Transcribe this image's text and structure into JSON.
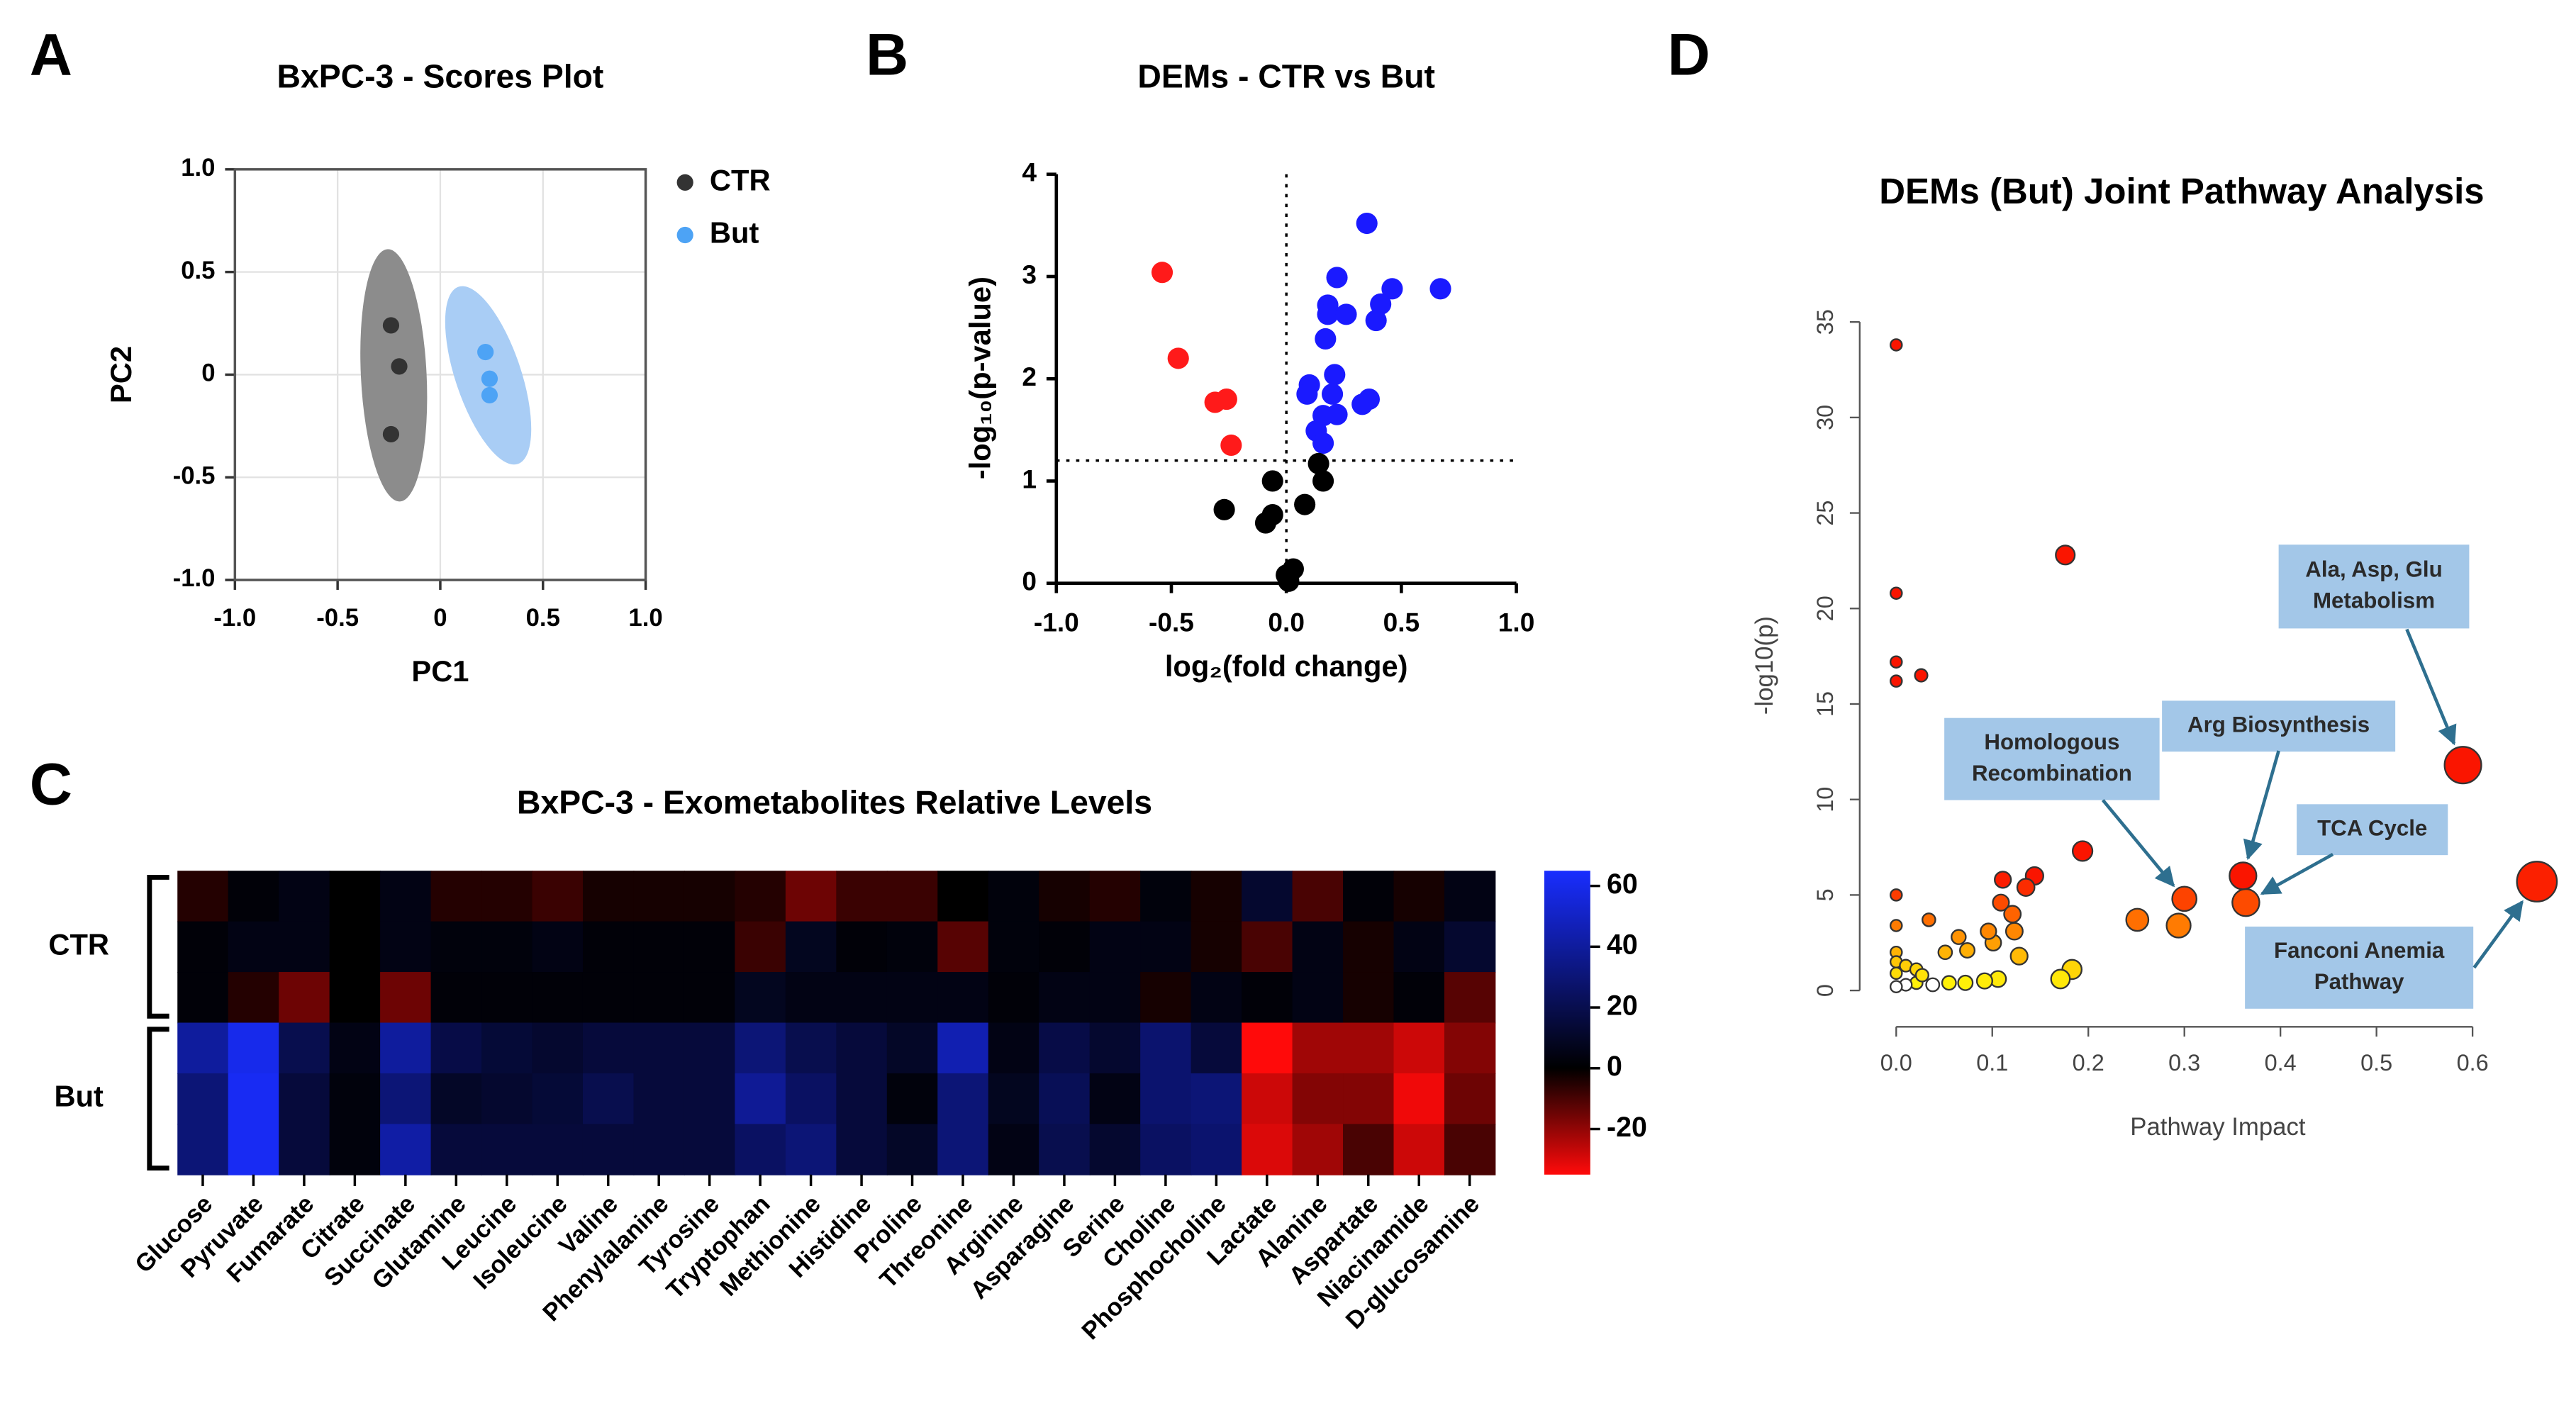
{
  "chart_data": [
    {
      "type": "scatter",
      "panel_label": "A",
      "title": "BxPC-3 - Scores Plot",
      "x_label": "PC1",
      "y_label": "PC2",
      "xlim": [
        -1,
        1
      ],
      "ylim": [
        -1,
        1
      ],
      "xticks": [
        {
          "value": -1,
          "label": "-1.0"
        },
        -0.5,
        0,
        0.5,
        {
          "value": 1,
          "label": "1.0"
        }
      ],
      "yticks": [
        {
          "value": -1,
          "label": "-1.0"
        },
        -0.5,
        0,
        0.5,
        {
          "value": 1,
          "label": "1.0"
        }
      ],
      "grid": true,
      "ellipses": true,
      "legend": "right",
      "series": [
        {
          "name": "CTR",
          "color": "#333333",
          "ellipse_color": "#8c8c8c",
          "x": [
            -0.24,
            -0.2,
            -0.24
          ],
          "values": [
            0.24,
            0.04,
            -0.29
          ]
        },
        {
          "name": "But",
          "color": "#4da3f5",
          "ellipse_color": "#a9cdf5",
          "x": [
            0.22,
            0.24,
            0.24
          ],
          "values": [
            0.11,
            -0.02,
            -0.1
          ]
        }
      ]
    },
    {
      "type": "volcano",
      "panel_label": "B",
      "title": "DEMs - CTR vs But",
      "x_label": "log₂(fold change)",
      "y_label": "-log₁₀(p-value)",
      "xlim": [
        -1,
        1
      ],
      "ylim": [
        0,
        4
      ],
      "xticks": [
        {
          "value": -1,
          "label": "-1.0"
        },
        -0.5,
        {
          "value": 0,
          "label": "0.0"
        },
        0.5,
        {
          "value": 1,
          "label": "1.0"
        }
      ],
      "yticks": [
        0,
        1,
        2,
        3,
        4
      ],
      "reference_lines": {
        "x": 0,
        "y": 1.2
      },
      "series": [
        {
          "color": "#ff1a1a",
          "x": [
            -0.54,
            -0.47,
            -0.31,
            -0.26,
            -0.24
          ],
          "values": [
            3.04,
            2.2,
            1.77,
            1.8,
            1.35
          ]
        },
        {
          "color": "#1a1aff",
          "x": [
            0.35,
            0.67,
            0.46,
            0.41,
            0.39,
            0.22,
            0.18,
            0.18,
            0.26,
            0.17,
            0.21,
            0.1,
            0.09,
            0.2,
            0.36,
            0.33,
            0.22,
            0.16,
            0.13,
            0.16
          ],
          "values": [
            3.52,
            2.88,
            2.88,
            2.73,
            2.57,
            2.99,
            2.72,
            2.63,
            2.63,
            2.39,
            2.04,
            1.94,
            1.85,
            1.85,
            1.8,
            1.75,
            1.65,
            1.64,
            1.49,
            1.37
          ]
        },
        {
          "color": "#000000",
          "x": [
            0.14,
            0.16,
            -0.06,
            0.08,
            -0.06,
            -0.09,
            -0.27,
            0.03,
            0,
            0.01
          ],
          "values": [
            1.17,
            1.0,
            1.0,
            0.77,
            0.67,
            0.59,
            0.72,
            0.14,
            0.08,
            0.02
          ]
        }
      ]
    },
    {
      "type": "heatmap",
      "panel_label": "C",
      "title": "BxPC-3 - Exometabolites Relative Levels",
      "categories": [
        "Glucose",
        "Pyruvate",
        "Fumarate",
        "Citrate",
        "Succinate",
        "Glutamine",
        "Leucine",
        "Isoleucine",
        "Valine",
        "Phenylalanine",
        "Tyrosine",
        "Tryptophan",
        "Methionine",
        "Histidine",
        "Proline",
        "Threonine",
        "Arginine",
        "Asparagine",
        "Serine",
        "Choline",
        "Phosphocholine",
        "Lactate",
        "Alanine",
        "Aspartate",
        "Niacinamide",
        "D-glucosamine"
      ],
      "groups": [
        {
          "name": "CTR",
          "rows": [
            [
              -5,
              2,
              5,
              0,
              5,
              -5,
              -5,
              -8,
              -3,
              -3,
              -3,
              -5,
              -15,
              -8,
              -8,
              0,
              3,
              -3,
              -5,
              3,
              -3,
              12,
              -10,
              2,
              -3,
              5
            ],
            [
              2,
              5,
              5,
              0,
              5,
              3,
              3,
              5,
              2,
              2,
              2,
              -8,
              8,
              2,
              3,
              -12,
              3,
              2,
              5,
              5,
              -3,
              -10,
              5,
              -3,
              5,
              12
            ],
            [
              2,
              -5,
              -15,
              0,
              -15,
              2,
              2,
              2,
              2,
              2,
              2,
              8,
              5,
              5,
              5,
              5,
              2,
              5,
              5,
              -3,
              5,
              2,
              5,
              -3,
              2,
              -12
            ]
          ]
        },
        {
          "name": "But",
          "rows": [
            [
              40,
              60,
              20,
              5,
              40,
              18,
              14,
              12,
              15,
              15,
              15,
              30,
              20,
              15,
              10,
              45,
              5,
              18,
              12,
              28,
              15,
              -35,
              -22,
              -22,
              -28,
              -18
            ],
            [
              30,
              62,
              15,
              3,
              30,
              10,
              12,
              14,
              20,
              15,
              15,
              38,
              25,
              15,
              3,
              30,
              8,
              22,
              5,
              28,
              30,
              -28,
              -18,
              -18,
              -33,
              -15
            ],
            [
              30,
              62,
              15,
              3,
              42,
              15,
              15,
              15,
              15,
              15,
              15,
              25,
              30,
              15,
              10,
              30,
              5,
              20,
              12,
              25,
              28,
              -30,
              -22,
              -10,
              -28,
              -10
            ]
          ]
        }
      ],
      "zlim": [
        -35,
        65
      ],
      "colorbar_ticks": [
        60,
        40,
        20,
        0,
        -20
      ]
    },
    {
      "type": "bubble",
      "panel_label": "D",
      "title": "DEMs (But) Joint Pathway Analysis",
      "x_label": "Pathway Impact",
      "y_label": "-log10(p)",
      "xlim": [
        -0.038,
        0.7
      ],
      "ylim": [
        -1.9,
        36.5
      ],
      "xticks": [
        {
          "value": 0,
          "label": "0.0"
        },
        0.1,
        0.2,
        0.3,
        0.4,
        0.5,
        0.6
      ],
      "yticks": [
        0,
        5,
        10,
        15,
        20,
        25,
        30,
        35
      ],
      "x": [
        0,
        0,
        0,
        0,
        0.026,
        0.176,
        0.59,
        0.667,
        0.361,
        0.364,
        0.3,
        0.294,
        0.251,
        0.194,
        0.144,
        0.111,
        0.135,
        0.109,
        0.121,
        0.123,
        0.101,
        0.096,
        0.128,
        0.074,
        0.065,
        0.051,
        0.034,
        0,
        0,
        0.183,
        0.171,
        0.106,
        0.092,
        0.072,
        0.055,
        0.038,
        0.021,
        0.01,
        0,
        0,
        0,
        0,
        0.01,
        0.021,
        0.027
      ],
      "values": [
        33.8,
        20.8,
        17.2,
        16.2,
        16.5,
        22.8,
        11.8,
        5.7,
        6.0,
        4.6,
        4.8,
        3.4,
        3.7,
        7.3,
        6.0,
        5.8,
        5.4,
        4.6,
        4.0,
        3.1,
        2.5,
        3.1,
        1.8,
        2.1,
        2.8,
        2.0,
        3.7,
        5.0,
        3.4,
        1.1,
        0.6,
        0.6,
        0.5,
        0.4,
        0.4,
        0.3,
        0.4,
        0.3,
        0.2,
        2.0,
        1.5,
        0.9,
        1.3,
        1.1,
        0.8
      ],
      "point_labels": [
        null,
        null,
        null,
        null,
        null,
        null,
        [
          "Ala, Asp, Glu",
          "Metabolism"
        ],
        [
          "Fanconi Anemia",
          "Pathway"
        ],
        [
          "Arg Biosynthesis"
        ],
        [
          "TCA Cycle"
        ],
        [
          "Homologous",
          "Recombination"
        ],
        null,
        null,
        null,
        null,
        null,
        null,
        null,
        null,
        null,
        null,
        null,
        null,
        null,
        null,
        null,
        null,
        null,
        null,
        null,
        null,
        null,
        null,
        null,
        null,
        null,
        null,
        null,
        null,
        null,
        null,
        null,
        null,
        null,
        null
      ]
    }
  ]
}
